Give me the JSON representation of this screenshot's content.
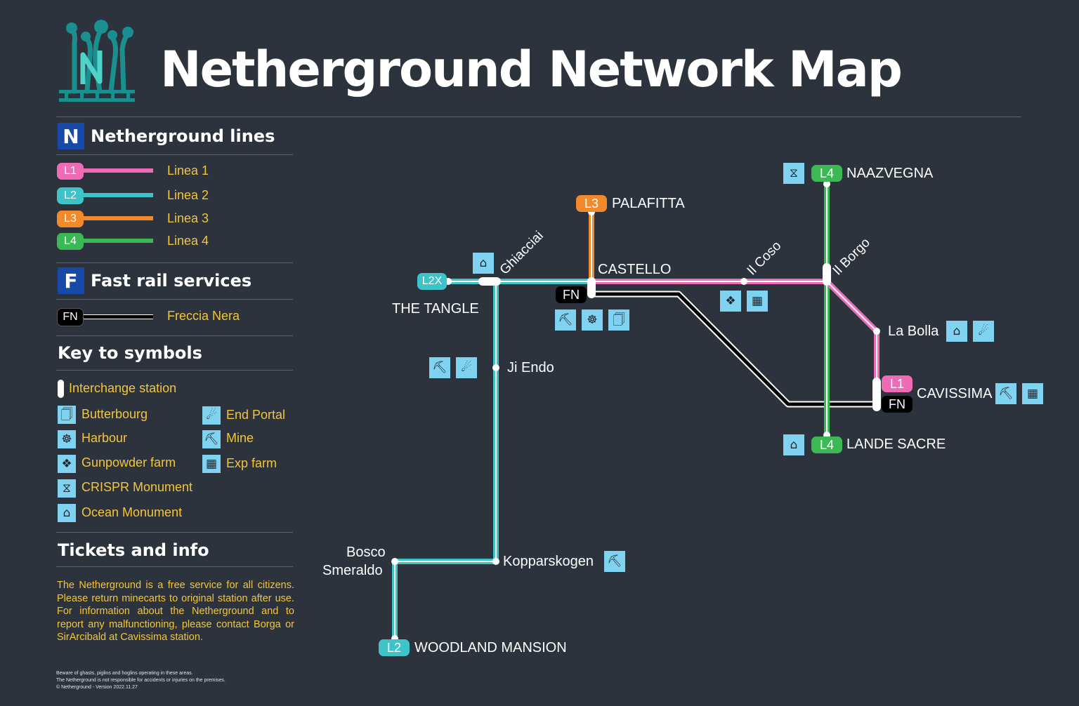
{
  "header": {
    "title": "Netherground Network Map"
  },
  "legend": {
    "lines_heading_badge": "N",
    "lines_heading": "Netherground lines",
    "lines": [
      {
        "code": "L1",
        "name": "Linea 1",
        "color": "#f06bb5"
      },
      {
        "code": "L2",
        "name": "Linea 2",
        "color": "#3ec4c8"
      },
      {
        "code": "L3",
        "name": "Linea 3",
        "color": "#f28a2c"
      },
      {
        "code": "L4",
        "name": "Linea 4",
        "color": "#3cb955"
      }
    ],
    "fast_heading_badge": "F",
    "fast_heading": "Fast rail services",
    "fast": [
      {
        "code": "FN",
        "name": "Freccia Nera",
        "color": "#000000"
      }
    ],
    "symbols_heading": "Key to symbols",
    "interchange_label": "Interchange station",
    "symbols": [
      {
        "icon": "butterbourg-icon",
        "label": "Butterbourg"
      },
      {
        "icon": "harbour-icon",
        "label": "Harbour"
      },
      {
        "icon": "gunpowder-farm-icon",
        "label": "Gunpowder farm"
      },
      {
        "icon": "crispr-monument-icon",
        "label": "CRISPR Monument"
      },
      {
        "icon": "ocean-monument-icon",
        "label": "Ocean Monument"
      },
      {
        "icon": "end-portal-icon",
        "label": "End Portal"
      },
      {
        "icon": "mine-icon",
        "label": "Mine"
      },
      {
        "icon": "exp-farm-icon",
        "label": "Exp farm"
      }
    ],
    "tickets_heading": "Tickets and info",
    "tickets_text": "The Netherground is a free service for all citizens. Please return minecarts to original station after use. For information about the Netherground and to report any malfunctioning, please contact Borga or SirArcibald at Cavissima station.",
    "fine_print": [
      "Beware of ghasts, piglins and hoglins operating in these areas.",
      "The Netherground is not responsible for accidents or injuries on the premises.",
      "© Netherground - Version 2022.11.27"
    ]
  },
  "map": {
    "stations": {
      "the_tangle": "THE TANGLE",
      "ghiacciai": "Ghiacciai",
      "palafitta": "PALAFITTA",
      "castello": "CASTELLO",
      "il_coso": "Il Coso",
      "il_borgo": "Il Borgo",
      "naazvegna": "NAAZVEGNA",
      "la_bolla": "La Bolla",
      "cavissima": "CAVISSIMA",
      "lande_sacre": "LANDE SACRE",
      "ji_endo": "Ji Endo",
      "kopparskogen": "Kopparskogen",
      "bosco_1": "Bosco",
      "bosco_2": "Smeraldo",
      "woodland_mansion": "WOODLAND MANSION"
    },
    "terminal_badges": {
      "l2x": "L2X",
      "l3": "L3",
      "l4_north": "L4",
      "l4_south": "L4",
      "l1": "L1",
      "fn_cavissima": "FN",
      "fn_castello": "FN",
      "l2_south": "L2"
    }
  }
}
